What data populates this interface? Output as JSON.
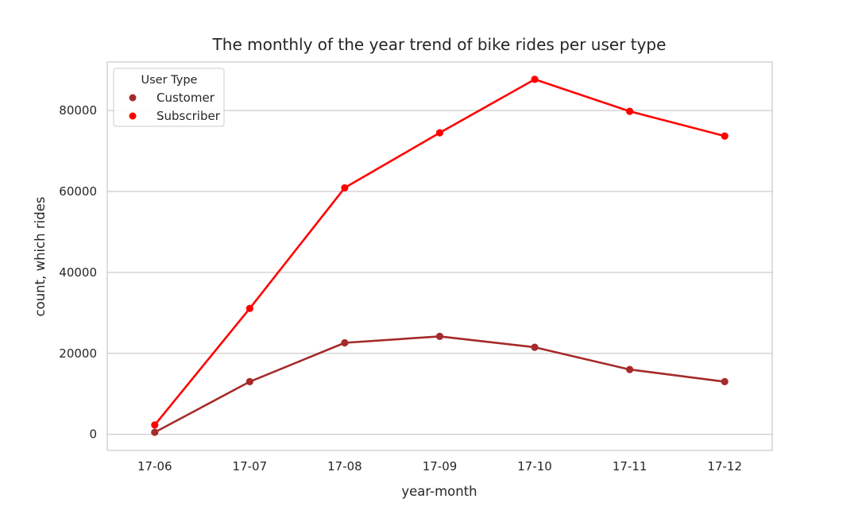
{
  "chart_data": {
    "type": "line",
    "title": "The monthly of the year trend of bike rides per user type",
    "xlabel": "year-month",
    "ylabel": "count, which rides",
    "categories": [
      "17-06",
      "17-07",
      "17-08",
      "17-09",
      "17-10",
      "17-11",
      "17-12"
    ],
    "ylim": [
      -4000,
      92000
    ],
    "yticks": [
      0,
      20000,
      40000,
      60000,
      80000
    ],
    "ytick_labels": [
      "0",
      "20000",
      "40000",
      "60000",
      "80000"
    ],
    "grid": "horizontal",
    "legend": {
      "title": "User Type",
      "placement": "top-left"
    },
    "series": [
      {
        "name": "Customer",
        "color": "#a52a2a",
        "values": [
          500,
          13000,
          22600,
          24200,
          21500,
          16000,
          13000
        ]
      },
      {
        "name": "Subscriber",
        "color": "#ff0000",
        "values": [
          2300,
          31100,
          60900,
          74500,
          87700,
          79800,
          73700
        ]
      }
    ]
  }
}
